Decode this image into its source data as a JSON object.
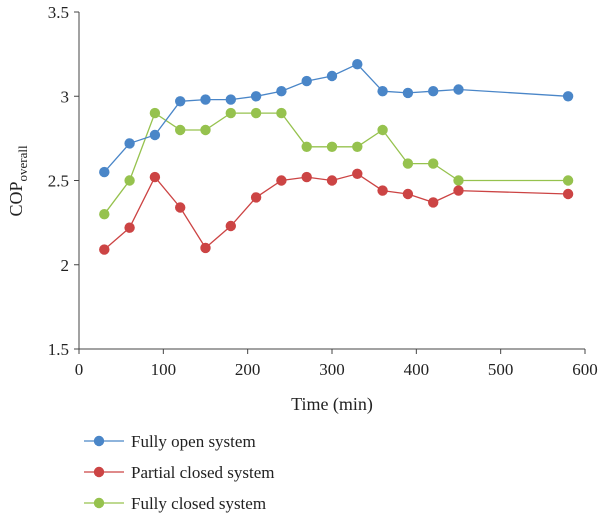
{
  "chart_data": {
    "type": "line",
    "title": "",
    "xlabel": "Time (min)",
    "ylabel": "COP",
    "ylabel_subscript": "overall",
    "xlim": [
      0,
      600
    ],
    "ylim": [
      1.5,
      3.5
    ],
    "xticks": [
      0,
      100,
      200,
      300,
      400,
      500,
      600
    ],
    "yticks": [
      1.5,
      2,
      2.5,
      3,
      3.5
    ],
    "ytick_labels": [
      "1.5",
      "2",
      "2.5",
      "3",
      "3.5"
    ],
    "grid": false,
    "legend_position": "bottom",
    "x": [
      30,
      60,
      90,
      120,
      150,
      180,
      210,
      240,
      270,
      300,
      330,
      360,
      390,
      420,
      450,
      580
    ],
    "series": [
      {
        "name": "Fully open system",
        "color": "#4a86c8",
        "values": [
          2.55,
          2.72,
          2.77,
          2.97,
          2.98,
          2.98,
          3.0,
          3.03,
          3.09,
          3.12,
          3.19,
          3.03,
          3.02,
          3.03,
          3.04,
          3.0
        ]
      },
      {
        "name": "Partial closed system",
        "color": "#cc4444",
        "values": [
          2.09,
          2.22,
          2.52,
          2.34,
          2.1,
          2.23,
          2.4,
          2.5,
          2.52,
          2.5,
          2.54,
          2.44,
          2.42,
          2.37,
          2.44,
          2.42
        ]
      },
      {
        "name": "Fully closed system",
        "color": "#96c24e",
        "values": [
          2.3,
          2.5,
          2.9,
          2.8,
          2.8,
          2.9,
          2.9,
          2.9,
          2.7,
          2.7,
          2.7,
          2.8,
          2.6,
          2.6,
          2.5,
          2.5
        ]
      }
    ]
  }
}
